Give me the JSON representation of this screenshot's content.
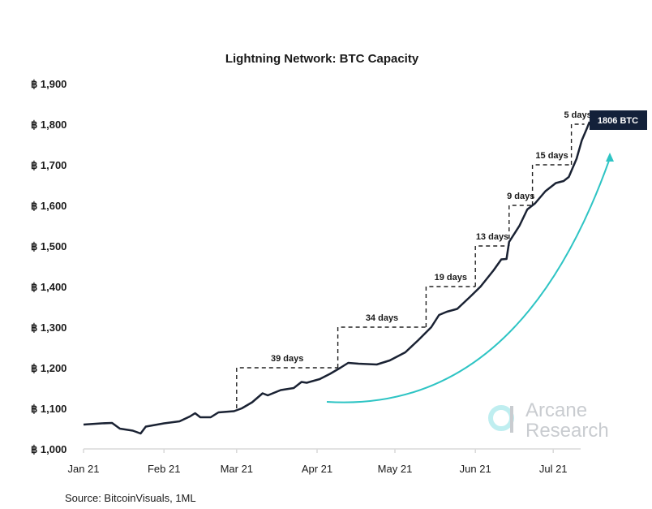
{
  "chart_data": {
    "type": "line",
    "title": "Lightning Network: BTC Capacity",
    "xlabel": "",
    "ylabel": "",
    "ylim": [
      1000,
      1900
    ],
    "xlim": [
      "2021-01-01",
      "2021-07-20"
    ],
    "y_ticks": [
      1000,
      1100,
      1200,
      1300,
      1400,
      1500,
      1600,
      1700,
      1800,
      1900
    ],
    "y_tick_labels": [
      "฿ 1,000",
      "฿ 1,100",
      "฿ 1,200",
      "฿ 1,300",
      "฿ 1,400",
      "฿ 1,500",
      "฿ 1,600",
      "฿ 1,700",
      "฿ 1,800",
      "฿ 1,900"
    ],
    "x_ticks": [
      "2021-01-01",
      "2021-02-01",
      "2021-03-01",
      "2021-04-01",
      "2021-05-01",
      "2021-06-01",
      "2021-07-01"
    ],
    "x_tick_labels": [
      "Jan 21",
      "Feb 21",
      "Mar 21",
      "Apr 21",
      "May 21",
      "Jun 21",
      "Jul 21"
    ],
    "grid": false,
    "line_color": "#1a2233",
    "series": [
      {
        "x": [
          "2021-01-01",
          "2021-01-08",
          "2021-01-12",
          "2021-01-15",
          "2021-01-20",
          "2021-01-23",
          "2021-01-25",
          "2021-02-01",
          "2021-02-07",
          "2021-02-11",
          "2021-02-13",
          "2021-02-15",
          "2021-02-19",
          "2021-02-22",
          "2021-02-28",
          "2021-03-03",
          "2021-03-07",
          "2021-03-11",
          "2021-03-13",
          "2021-03-18",
          "2021-03-23",
          "2021-03-26",
          "2021-03-28",
          "2021-04-02",
          "2021-04-06",
          "2021-04-10",
          "2021-04-13",
          "2021-04-17",
          "2021-04-24",
          "2021-04-29",
          "2021-05-05",
          "2021-05-10",
          "2021-05-15",
          "2021-05-18",
          "2021-05-21",
          "2021-05-25",
          "2021-05-30",
          "2021-06-03",
          "2021-06-08",
          "2021-06-11",
          "2021-06-13",
          "2021-06-14",
          "2021-06-18",
          "2021-06-21",
          "2021-06-24",
          "2021-06-28",
          "2021-07-02",
          "2021-07-05",
          "2021-07-07",
          "2021-07-10",
          "2021-07-12",
          "2021-07-14",
          "2021-07-15"
        ],
        "values": [
          1060,
          1063,
          1064,
          1050,
          1045,
          1038,
          1055,
          1063,
          1068,
          1080,
          1088,
          1078,
          1078,
          1090,
          1093,
          1100,
          1115,
          1137,
          1132,
          1145,
          1150,
          1165,
          1163,
          1172,
          1185,
          1200,
          1212,
          1210,
          1208,
          1218,
          1238,
          1268,
          1300,
          1330,
          1338,
          1345,
          1375,
          1400,
          1440,
          1467,
          1468,
          1510,
          1550,
          1590,
          1605,
          1635,
          1655,
          1660,
          1670,
          1715,
          1760,
          1790,
          1806
        ]
      }
    ],
    "annotations": {
      "steps": [
        {
          "label": "39 days",
          "start": "2021-03-01",
          "end": "2021-04-09",
          "from": 1100,
          "to": 1200
        },
        {
          "label": "34 days",
          "start": "2021-04-09",
          "end": "2021-05-13",
          "from": 1200,
          "to": 1300
        },
        {
          "label": "19 days",
          "start": "2021-05-13",
          "end": "2021-06-01",
          "from": 1300,
          "to": 1400
        },
        {
          "label": "13 days",
          "start": "2021-06-01",
          "end": "2021-06-14",
          "from": 1400,
          "to": 1500
        },
        {
          "label": "9 days",
          "start": "2021-06-14",
          "end": "2021-06-23",
          "from": 1500,
          "to": 1600
        },
        {
          "label": "15 days",
          "start": "2021-06-23",
          "end": "2021-07-08",
          "from": 1600,
          "to": 1700
        },
        {
          "label": "5 days",
          "start": "2021-07-08",
          "end": "2021-07-13",
          "from": 1700,
          "to": 1800
        }
      ],
      "last_value_label": "1806 BTC",
      "last_value_color": "#13213a",
      "trend_arrow_color": "#2ec4c4"
    },
    "source": "Source: BitcoinVisuals, 1ML",
    "watermark": "Arcane Research"
  }
}
